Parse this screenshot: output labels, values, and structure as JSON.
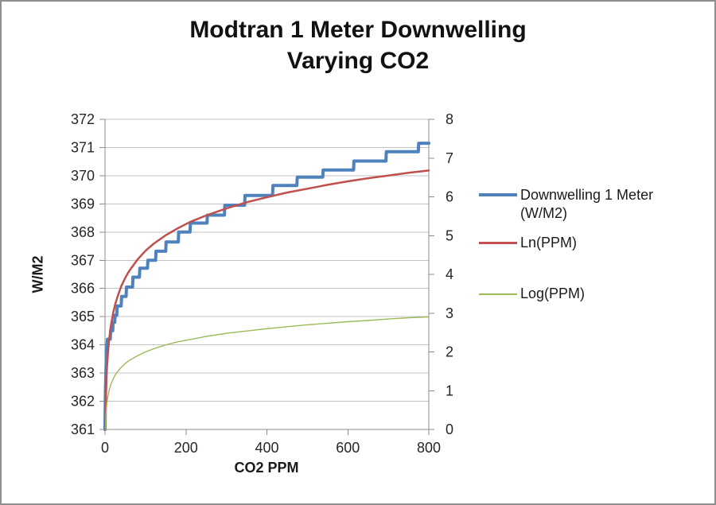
{
  "frame": {
    "border_color": "#8f8f8f",
    "background": "#ffffff"
  },
  "chart_data": {
    "type": "line",
    "title": "Modtran 1 Meter Downwelling\nVarying CO2",
    "grid": "horizontal",
    "gridline_color": "#c3c3c3",
    "axis_color": "#8c8c8c",
    "legend_position": "right",
    "x_axis": {
      "label": "CO2 PPM",
      "min": 0,
      "max": 800,
      "ticks": [
        0,
        200,
        400,
        600,
        800
      ]
    },
    "y_axis_left": {
      "label": "W/M2",
      "min": 361,
      "max": 372,
      "ticks": [
        361,
        362,
        363,
        364,
        365,
        366,
        367,
        368,
        369,
        370,
        371,
        372
      ]
    },
    "y_axis_right": {
      "label": "",
      "min": 0,
      "max": 8,
      "ticks": [
        0,
        1,
        2,
        3,
        4,
        5,
        6,
        7,
        8
      ]
    },
    "series": [
      {
        "name": "Downwelling 1 Meter (W/M2)",
        "axis": "left",
        "color": "#4F81BD",
        "stroke_width": 4,
        "points": [
          [
            0,
            361.0
          ],
          [
            1,
            362.3
          ],
          [
            2,
            362.9
          ],
          [
            3,
            363.4
          ],
          [
            4,
            363.75
          ],
          [
            5,
            364.0
          ],
          [
            6,
            364.2
          ],
          [
            13,
            364.2
          ],
          [
            14,
            364.5
          ],
          [
            19,
            364.5
          ],
          [
            20,
            364.8
          ],
          [
            24,
            364.8
          ],
          [
            25,
            365.05
          ],
          [
            29,
            365.05
          ],
          [
            30,
            365.38
          ],
          [
            40,
            365.38
          ],
          [
            41,
            365.72
          ],
          [
            52,
            365.72
          ],
          [
            53,
            366.05
          ],
          [
            68,
            366.05
          ],
          [
            69,
            366.4
          ],
          [
            85,
            366.4
          ],
          [
            86,
            366.72
          ],
          [
            105,
            366.72
          ],
          [
            106,
            367.0
          ],
          [
            125,
            367.0
          ],
          [
            126,
            367.32
          ],
          [
            150,
            367.32
          ],
          [
            151,
            367.65
          ],
          [
            181,
            367.65
          ],
          [
            182,
            368.0
          ],
          [
            210,
            368.0
          ],
          [
            211,
            368.32
          ],
          [
            252,
            368.32
          ],
          [
            253,
            368.6
          ],
          [
            295,
            368.6
          ],
          [
            296,
            368.95
          ],
          [
            345,
            368.95
          ],
          [
            346,
            369.3
          ],
          [
            414,
            369.3
          ],
          [
            415,
            369.65
          ],
          [
            474,
            369.65
          ],
          [
            475,
            369.95
          ],
          [
            538,
            369.95
          ],
          [
            539,
            370.2
          ],
          [
            614,
            370.2
          ],
          [
            615,
            370.52
          ],
          [
            694,
            370.52
          ],
          [
            695,
            370.85
          ],
          [
            774,
            370.85
          ],
          [
            775,
            371.15
          ],
          [
            800,
            371.15
          ]
        ]
      },
      {
        "name": "Ln(PPM)",
        "axis": "right",
        "color": "#C0504D",
        "stroke_width": 2.5,
        "points": [
          [
            1,
            0
          ],
          [
            2,
            0.69
          ],
          [
            3,
            1.1
          ],
          [
            4,
            1.39
          ],
          [
            5,
            1.61
          ],
          [
            7,
            1.95
          ],
          [
            10,
            2.3
          ],
          [
            14,
            2.64
          ],
          [
            20,
            3.0
          ],
          [
            25,
            3.22
          ],
          [
            30,
            3.4
          ],
          [
            40,
            3.69
          ],
          [
            50,
            3.91
          ],
          [
            60,
            4.09
          ],
          [
            80,
            4.38
          ],
          [
            100,
            4.61
          ],
          [
            120,
            4.79
          ],
          [
            150,
            5.01
          ],
          [
            180,
            5.19
          ],
          [
            210,
            5.35
          ],
          [
            250,
            5.52
          ],
          [
            300,
            5.7
          ],
          [
            350,
            5.86
          ],
          [
            400,
            5.99
          ],
          [
            450,
            6.11
          ],
          [
            500,
            6.21
          ],
          [
            550,
            6.31
          ],
          [
            600,
            6.4
          ],
          [
            650,
            6.48
          ],
          [
            700,
            6.55
          ],
          [
            750,
            6.62
          ],
          [
            800,
            6.68
          ]
        ]
      },
      {
        "name": "Log(PPM)",
        "axis": "right",
        "color": "#9BBB59",
        "stroke_width": 1.4,
        "points": [
          [
            1,
            0
          ],
          [
            2,
            0.3
          ],
          [
            3,
            0.48
          ],
          [
            4,
            0.6
          ],
          [
            5,
            0.7
          ],
          [
            7,
            0.85
          ],
          [
            10,
            1.0
          ],
          [
            14,
            1.15
          ],
          [
            20,
            1.3
          ],
          [
            25,
            1.4
          ],
          [
            30,
            1.48
          ],
          [
            40,
            1.6
          ],
          [
            50,
            1.7
          ],
          [
            60,
            1.78
          ],
          [
            80,
            1.9
          ],
          [
            100,
            2.0
          ],
          [
            120,
            2.08
          ],
          [
            150,
            2.18
          ],
          [
            180,
            2.26
          ],
          [
            210,
            2.32
          ],
          [
            250,
            2.4
          ],
          [
            300,
            2.48
          ],
          [
            350,
            2.54
          ],
          [
            400,
            2.6
          ],
          [
            450,
            2.65
          ],
          [
            500,
            2.7
          ],
          [
            550,
            2.74
          ],
          [
            600,
            2.78
          ],
          [
            650,
            2.81
          ],
          [
            700,
            2.85
          ],
          [
            750,
            2.88
          ],
          [
            800,
            2.9
          ]
        ]
      }
    ]
  }
}
